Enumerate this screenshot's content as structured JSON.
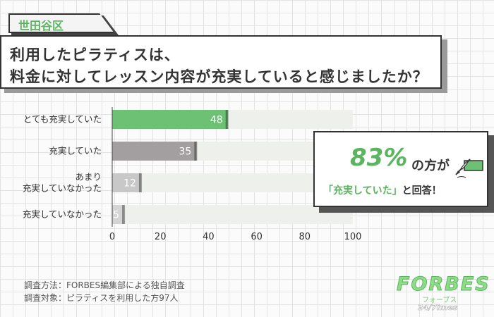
{
  "region_tag": "世田谷区",
  "title": {
    "line1": "利用したピラティスは、",
    "line2": "料金に対してレッスン内容が充実していると感じましたか？"
  },
  "chart_data": {
    "type": "bar",
    "orientation": "horizontal",
    "categories": [
      [
        "とても充実していた"
      ],
      [
        "充実していた"
      ],
      [
        "あまり",
        "充実していなかった"
      ],
      [
        "充実していなかった"
      ]
    ],
    "values": [
      48,
      35,
      12,
      5
    ],
    "bar_colors": [
      "#6cc175",
      "#a39e9f",
      "#c8c8c8",
      "#d4d4d4"
    ],
    "track_color": "#eef0ec",
    "xlim": [
      0,
      100
    ],
    "xticks": [
      0,
      20,
      40,
      60,
      80,
      100
    ],
    "grid": false
  },
  "callout": {
    "big": "83%",
    "suffix": "の方が",
    "highlight": "「充実していた」",
    "rest": "と回答！"
  },
  "notes": {
    "method": "調査方法：FORBES編集部による独自調査",
    "target": "調査対象：ピラティスを利用した方97人"
  },
  "logo": {
    "main": "FORBES",
    "kana": "フォーブス",
    "sub": "24/7imes"
  },
  "icons": {
    "pen": "pen-writing-icon"
  }
}
